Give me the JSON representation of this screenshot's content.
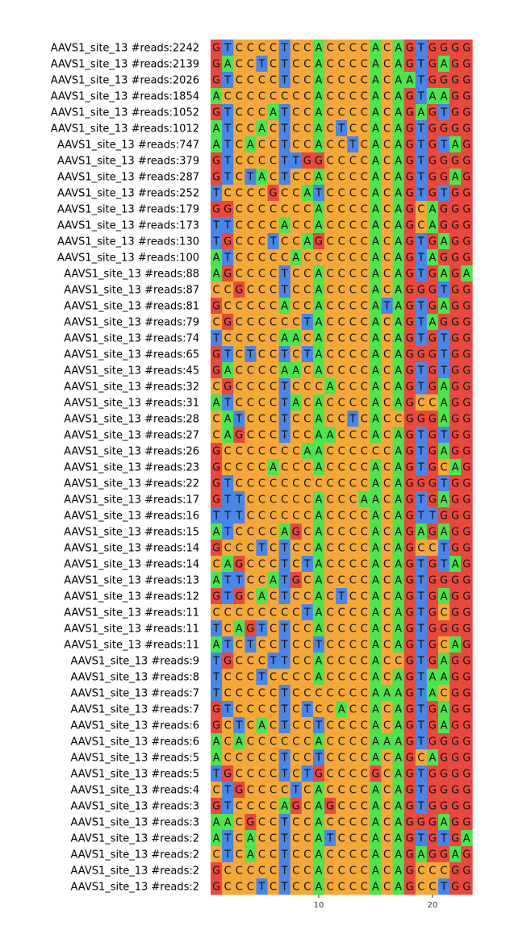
{
  "chart_data": {
    "type": "heatmap",
    "title": "",
    "xlabel": "",
    "ylabel": "",
    "x_ticks": [
      10,
      20
    ],
    "xlim": [
      1,
      23
    ],
    "grid": false,
    "legend": "none",
    "colors": {
      "A": "#4ee44e",
      "C": "#f5a83a",
      "G": "#e8493f",
      "T": "#4a86e8"
    },
    "rows": [
      {
        "label": "AAVS1_site_13 #reads:2242",
        "seq": "GTCCCCTCCACCCCACAGTGGGG"
      },
      {
        "label": "AAVS1_site_13 #reads:2139",
        "seq": "GACCTCTCCACCCCACAGTGAGG"
      },
      {
        "label": "AAVS1_site_13 #reads:2026",
        "seq": "GTCCCCTCCACCCCACAATGGGG"
      },
      {
        "label": "AAVS1_site_13 #reads:1854",
        "seq": "ACCCCCCCCACCCCACAGTAAGG"
      },
      {
        "label": "AAVS1_site_13 #reads:1052",
        "seq": "GTCCCATCCACCCCACAGAGTGG"
      },
      {
        "label": "AAVS1_site_13 #reads:1012",
        "seq": "ATCCACTCCACTCCACAGTGGGG"
      },
      {
        "label": "AAVS1_site_13 #reads:747",
        "seq": "ATCACCTCCACCTCACAGTGTAG"
      },
      {
        "label": "AAVS1_site_13 #reads:379",
        "seq": "GTCCCCTTGGCCCCACAGTGGGG"
      },
      {
        "label": "AAVS1_site_13 #reads:287",
        "seq": "GTCTACTCCACCCCACAGTGGAG"
      },
      {
        "label": "AAVS1_site_13 #reads:252",
        "seq": "TCCCCGCCATCCCCACAGTGTGG"
      },
      {
        "label": "AAVS1_site_13 #reads:179",
        "seq": "GGCCCCCCCACCCCACAGCAGGG"
      },
      {
        "label": "AAVS1_site_13 #reads:173",
        "seq": "TTCCCCACCACCCCACAGCAGGG"
      },
      {
        "label": "AAVS1_site_13 #reads:130",
        "seq": "TGCCCTCCAGCCCCACAGTGAGG"
      },
      {
        "label": "AAVS1_site_13 #reads:100",
        "seq": "ATCCCCCACCCCCCACAGTAGGG"
      },
      {
        "label": "AAVS1_site_13 #reads:88",
        "seq": "AGCCCCTCCACCCCACAGTGAGA"
      },
      {
        "label": "AAVS1_site_13 #reads:87",
        "seq": "CCGCCCTCCACCCCACAGGGTGG"
      },
      {
        "label": "AAVS1_site_13 #reads:81",
        "seq": "GCCCCCACCACCCCATAGTGAGG"
      },
      {
        "label": "AAVS1_site_13 #reads:79",
        "seq": "CGCCCCCCTACCCCACAGTAGGG"
      },
      {
        "label": "AAVS1_site_13 #reads:74",
        "seq": "TCCCCCAACACCCCACAGTGTGG"
      },
      {
        "label": "AAVS1_site_13 #reads:65",
        "seq": "GTCTCCTCTACCCCACAGGGTGG"
      },
      {
        "label": "AAVS1_site_13 #reads:45",
        "seq": "GACCCCAACACCCCACAGTGTGG"
      },
      {
        "label": "AAVS1_site_13 #reads:32",
        "seq": "CGCCCCTCCCACCCACAGTGAGG"
      },
      {
        "label": "AAVS1_site_13 #reads:31",
        "seq": "ATCCCCTACACCCCACAGCCAGG"
      },
      {
        "label": "AAVS1_site_13 #reads:28",
        "seq": "CATCCCTCCACCTCACCGGGAGG"
      },
      {
        "label": "AAVS1_site_13 #reads:27",
        "seq": "CAGCCCTCCAACCCACAGTGTGG"
      },
      {
        "label": "AAVS1_site_13 #reads:26",
        "seq": "GCCCCCCCAACCCCCCAGTGAGG"
      },
      {
        "label": "AAVS1_site_13 #reads:23",
        "seq": "GCCCCACCCACCCCACAGTGCAG"
      },
      {
        "label": "AAVS1_site_13 #reads:22",
        "seq": "GTCCCCCCCCCCCCACAGGGTGG"
      },
      {
        "label": "AAVS1_site_13 #reads:17",
        "seq": "GTTCCCCCCACCCAACAGTGAGG"
      },
      {
        "label": "AAVS1_site_13 #reads:16",
        "seq": "TTTCCCCCCACCCCACAGTTGGG"
      },
      {
        "label": "AAVS1_site_13 #reads:15",
        "seq": "ATCCCCAGCACCCCACAGAGAGG"
      },
      {
        "label": "AAVS1_site_13 #reads:14",
        "seq": "GCCCTCTCCACCCCACAGCCTGG"
      },
      {
        "label": "AAVS1_site_13 #reads:14",
        "seq": "CAGCCCTCTACCCCACAGTGTAG"
      },
      {
        "label": "AAVS1_site_13 #reads:13",
        "seq": "ATTCCATGCACCCCACAGTGGGG"
      },
      {
        "label": "AAVS1_site_13 #reads:12",
        "seq": "GTGCACTCCACTCCACAGTGAGG"
      },
      {
        "label": "AAVS1_site_13 #reads:11",
        "seq": "CCCCCCCCTACCCCACAGTGCGG"
      },
      {
        "label": "AAVS1_site_13 #reads:11",
        "seq": "TCAGTCTCCACCCCACAGTGGGG"
      },
      {
        "label": "AAVS1_site_13 #reads:11",
        "seq": "ATCTCCTCCTCCCCACAGTGCAG"
      },
      {
        "label": "AAVS1_site_13 #reads:9",
        "seq": "TGCCCTTCCACCCCACCGTGAGG"
      },
      {
        "label": "AAVS1_site_13 #reads:8",
        "seq": "TCCCTCCCCACCCCACAGTAAGG"
      },
      {
        "label": "AAVS1_site_13 #reads:7",
        "seq": "TCCCCCTCCCCCCCAAAGTACGG"
      },
      {
        "label": "AAVS1_site_13 #reads:7",
        "seq": "GTCCCCTCTCCACCACAGTGAGG"
      },
      {
        "label": "AAVS1_site_13 #reads:6",
        "seq": "GCTCACTCCTCCCCACAGTGAGG"
      },
      {
        "label": "AAVS1_site_13 #reads:6",
        "seq": "ACACCCCCCACCCCAAAGTGGGG"
      },
      {
        "label": "AAVS1_site_13 #reads:5",
        "seq": "ACCCCCTCCTCCCCACAGCAGGG"
      },
      {
        "label": "AAVS1_site_13 #reads:5",
        "seq": "TGCCCCTCTGCCCCGCAGTGGGG"
      },
      {
        "label": "AAVS1_site_13 #reads:4",
        "seq": "CTGCCCCTCACCCCACAGTGGGG"
      },
      {
        "label": "AAVS1_site_13 #reads:3",
        "seq": "GTCCCCAGCAGCCCACAGTGGGG"
      },
      {
        "label": "AAVS1_site_13 #reads:3",
        "seq": "AACGCCTCCACCCCACAGGGAGG"
      },
      {
        "label": "AAVS1_site_13 #reads:2",
        "seq": "ATCACCTCCATCCCACAGTGTGA"
      },
      {
        "label": "AAVS1_site_13 #reads:2",
        "seq": "CTCACCTCCACCCCACAGAGGAG"
      },
      {
        "label": "AAVS1_site_13 #reads:2",
        "seq": "GCCCCCTCCACCCCACAGCCCGG"
      },
      {
        "label": "AAVS1_site_13 #reads:2",
        "seq": "GCCCTCTCCACCCCACAGCCTGG"
      }
    ]
  }
}
